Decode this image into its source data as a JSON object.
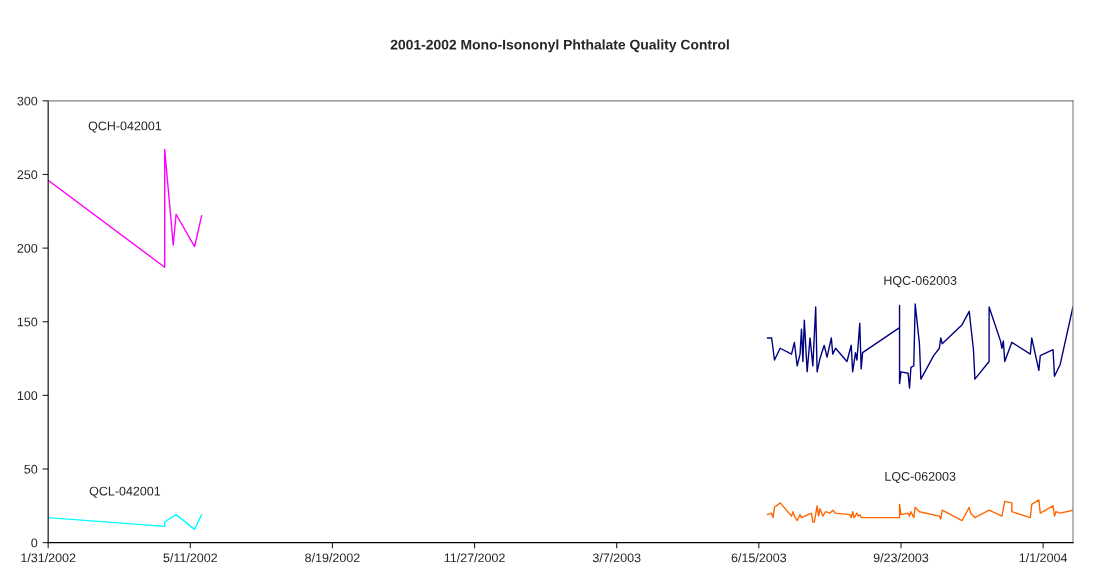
{
  "chart_data": {
    "type": "line",
    "title": "2001-2002 Mono-Isononyl Phthalate Quality Control",
    "xlim": [
      "2002-01-31",
      "2004-01-22"
    ],
    "xticks": [
      {
        "value": "2002-01-31",
        "label": "1/31/2002"
      },
      {
        "value": "2002-05-11",
        "label": "5/11/2002"
      },
      {
        "value": "2002-08-19",
        "label": "8/19/2002"
      },
      {
        "value": "2002-11-27",
        "label": "11/27/2002"
      },
      {
        "value": "2003-03-07",
        "label": "3/7/2003"
      },
      {
        "value": "2003-06-15",
        "label": "6/15/2003"
      },
      {
        "value": "2003-09-23",
        "label": "9/23/2003"
      },
      {
        "value": "2004-01-01",
        "label": "1/1/2004"
      }
    ],
    "ylim": [
      0,
      300
    ],
    "yticks": [
      0,
      50,
      100,
      150,
      200,
      250,
      300
    ],
    "grid": false,
    "legend": false,
    "marker": "none",
    "line_style": "solid",
    "series": [
      {
        "name": "QCH-042001",
        "color": "#ff00ff",
        "x": [
          "2002-01-31",
          "2002-04-23",
          "2002-04-23",
          "2002-04-29",
          "2002-05-01",
          "2002-05-14",
          "2002-05-19"
        ],
        "values": [
          246,
          187,
          267,
          202,
          223,
          201,
          222
        ]
      },
      {
        "name": "QCL-042001",
        "color": "#00ffff",
        "x": [
          "2002-01-31",
          "2002-04-23",
          "2002-04-23",
          "2002-05-01",
          "2002-05-14",
          "2002-05-19"
        ],
        "values": [
          17,
          11,
          14,
          19,
          9,
          19
        ]
      },
      {
        "name": "HQC-062003",
        "color": "#000080",
        "x": [
          "2003-06-21",
          "2003-06-24",
          "2003-06-26",
          "2003-06-30",
          "2003-07-08",
          "2003-07-10",
          "2003-07-12",
          "2003-07-14",
          "2003-07-15",
          "2003-07-16",
          "2003-07-17",
          "2003-07-19",
          "2003-07-21",
          "2003-07-23",
          "2003-07-25",
          "2003-07-26",
          "2003-07-28",
          "2003-07-31",
          "2003-08-02",
          "2003-08-05",
          "2003-08-06",
          "2003-08-08",
          "2003-08-16",
          "2003-08-19",
          "2003-08-20",
          "2003-08-22",
          "2003-08-23",
          "2003-08-24",
          "2003-08-25",
          "2003-08-26",
          "2003-08-27",
          "2003-09-22",
          "2003-09-22",
          "2003-09-22",
          "2003-09-23",
          "2003-09-28",
          "2003-09-29",
          "2003-09-30",
          "2003-10-02",
          "2003-10-03",
          "2003-10-06",
          "2003-10-07",
          "2003-10-16",
          "2003-10-20",
          "2003-10-21",
          "2003-10-22",
          "2003-11-05",
          "2003-11-10",
          "2003-11-13",
          "2003-11-14",
          "2003-11-24",
          "2003-11-24",
          "2003-12-02",
          "2003-12-03",
          "2003-12-04",
          "2003-12-05",
          "2003-12-10",
          "2003-12-23",
          "2003-12-24",
          "2003-12-29",
          "2003-12-30",
          "2004-01-08",
          "2004-01-09",
          "2004-01-13",
          "2004-01-22"
        ],
        "values": [
          139,
          139,
          124,
          132,
          128,
          136,
          120,
          128,
          145,
          123,
          151,
          116,
          139,
          120,
          160,
          116,
          125,
          134,
          126,
          139,
          128,
          132,
          123,
          134,
          116,
          129,
          124,
          136,
          149,
          118,
          129,
          146,
          161,
          108,
          116,
          115,
          105,
          119,
          120,
          162,
          135,
          111,
          127,
          132,
          139,
          135,
          148,
          157,
          131,
          111,
          123,
          160,
          137,
          132,
          137,
          123,
          136,
          128,
          139,
          117,
          127,
          131,
          113,
          121,
          160
        ]
      },
      {
        "name": "LQC-062003",
        "color": "#ff6600",
        "x": [
          "2003-06-21",
          "2003-06-24",
          "2003-06-25",
          "2003-06-26",
          "2003-06-30",
          "2003-07-08",
          "2003-07-09",
          "2003-07-10",
          "2003-07-12",
          "2003-07-14",
          "2003-07-15",
          "2003-07-22",
          "2003-07-23",
          "2003-07-24",
          "2003-07-26",
          "2003-07-27",
          "2003-07-28",
          "2003-07-30",
          "2003-08-01",
          "2003-08-04",
          "2003-08-06",
          "2003-08-08",
          "2003-08-18",
          "2003-08-19",
          "2003-08-20",
          "2003-08-21",
          "2003-08-23",
          "2003-08-24",
          "2003-08-25",
          "2003-08-26",
          "2003-09-22",
          "2003-09-22",
          "2003-09-23",
          "2003-09-28",
          "2003-09-29",
          "2003-09-30",
          "2003-10-02",
          "2003-10-03",
          "2003-10-06",
          "2003-10-20",
          "2003-10-21",
          "2003-10-22",
          "2003-11-05",
          "2003-11-10",
          "2003-11-11",
          "2003-11-14",
          "2003-11-24",
          "2003-12-03",
          "2003-12-05",
          "2003-12-10",
          "2003-12-10",
          "2003-12-23",
          "2003-12-24",
          "2003-12-29",
          "2003-12-30",
          "2004-01-08",
          "2004-01-09",
          "2004-01-10",
          "2004-01-13",
          "2004-01-22"
        ],
        "values": [
          19,
          20,
          17,
          24,
          27,
          18,
          21,
          18,
          15,
          19,
          17,
          20,
          14,
          14,
          25,
          18,
          23,
          18,
          21,
          20,
          22,
          20,
          19,
          17,
          21,
          17,
          20,
          18,
          19,
          17,
          17,
          26,
          19,
          20,
          18,
          21,
          17,
          24,
          21,
          18,
          16,
          22,
          15,
          24,
          20,
          17,
          22,
          18,
          28,
          27,
          21,
          17,
          26,
          29,
          20,
          25,
          18,
          21,
          20,
          22
        ]
      }
    ]
  }
}
